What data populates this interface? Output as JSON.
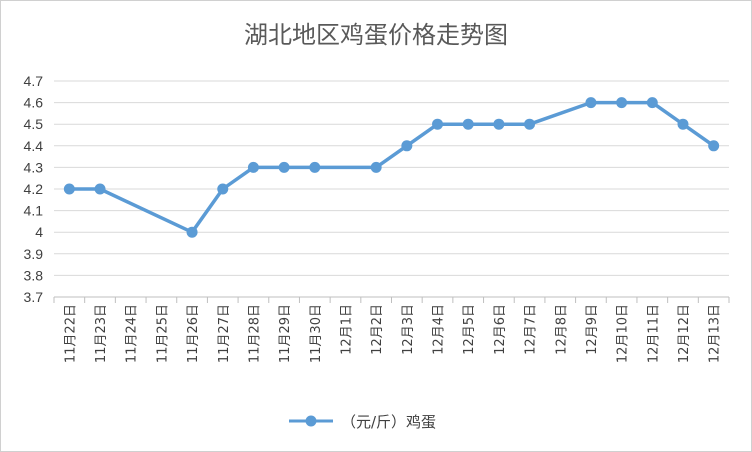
{
  "chart_data": {
    "type": "line",
    "title": "湖北地区鸡蛋价格走势图",
    "categories": [
      "11月22日",
      "11月23日",
      "11月24日",
      "11月25日",
      "11月26日",
      "11月27日",
      "11月28日",
      "11月29日",
      "11月30日",
      "12月1日",
      "12月2日",
      "12月3日",
      "12月4日",
      "12月5日",
      "12月6日",
      "12月7日",
      "12月8日",
      "12月9日",
      "12月10日",
      "12月11日",
      "12月12日",
      "12月13日"
    ],
    "series": [
      {
        "name": "（元/斤）鸡蛋",
        "color": "#5b9bd5",
        "values": [
          4.2,
          4.2,
          null,
          null,
          4.0,
          4.2,
          4.3,
          4.3,
          4.3,
          null,
          4.3,
          4.4,
          4.5,
          4.5,
          4.5,
          4.5,
          null,
          4.6,
          4.6,
          4.6,
          4.5,
          4.4
        ]
      }
    ],
    "yticks": [
      "3.7",
      "3.8",
      "3.9",
      "4",
      "4.1",
      "4.2",
      "4.3",
      "4.4",
      "4.5",
      "4.6",
      "4.7"
    ],
    "ylim": [
      3.7,
      4.7
    ],
    "grid": true,
    "legend_position": "bottom",
    "xlabel": "",
    "ylabel": ""
  }
}
